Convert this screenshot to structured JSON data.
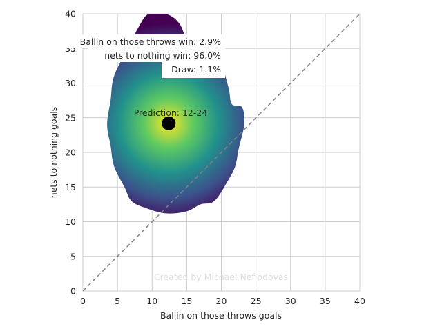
{
  "chart_data": {
    "type": "heatmap",
    "xlabel": "Ballin on those throws goals",
    "ylabel": "nets to nothing goals",
    "xlim": [
      0,
      40
    ],
    "ylim": [
      0,
      40
    ],
    "x_ticks": [
      "0",
      "5",
      "10",
      "15",
      "20",
      "25",
      "30",
      "35",
      "40"
    ],
    "y_ticks": [
      "0",
      "5",
      "10",
      "15",
      "20",
      "25",
      "30",
      "35",
      "40"
    ],
    "grid": true,
    "diagonal_reference_line": true,
    "density": {
      "colormap": "viridis",
      "peak": [
        12.4,
        24.2
      ],
      "outline": [
        [
          12,
          40
        ],
        [
          14,
          38.5
        ],
        [
          15.5,
          35
        ],
        [
          17.5,
          34
        ],
        [
          19.5,
          34
        ],
        [
          21,
          29.5
        ],
        [
          21.5,
          27
        ],
        [
          23,
          26.5
        ],
        [
          23.3,
          24
        ],
        [
          22.5,
          20.5
        ],
        [
          22,
          18
        ],
        [
          21,
          16
        ],
        [
          19,
          13
        ],
        [
          17,
          12.5
        ],
        [
          15,
          11.5
        ],
        [
          12,
          11.2
        ],
        [
          9,
          12
        ],
        [
          7,
          13
        ],
        [
          6,
          15
        ],
        [
          4.5,
          18
        ],
        [
          4,
          21
        ],
        [
          3.5,
          24
        ],
        [
          4,
          27.5
        ],
        [
          4.5,
          31
        ],
        [
          6.5,
          35
        ],
        [
          8,
          38
        ],
        [
          9.5,
          40
        ]
      ]
    },
    "prediction_point": {
      "x": 12.4,
      "y": 24.2,
      "label": "Prediction: 12-24"
    },
    "annotations": [
      "Ballin on those throws win: 2.9%",
      "nets to nothing win: 96.0%",
      "Draw: 1.1%"
    ],
    "watermark": "Created by Michael Nefiodovas"
  },
  "colors": {
    "viridis": [
      "#440154",
      "#3b528b",
      "#21918c",
      "#5ec962",
      "#fde725"
    ],
    "grid": "#cccccc",
    "diagonal": "#808080",
    "point": "#000000",
    "text": "#262626",
    "watermark": "#dddddd"
  }
}
